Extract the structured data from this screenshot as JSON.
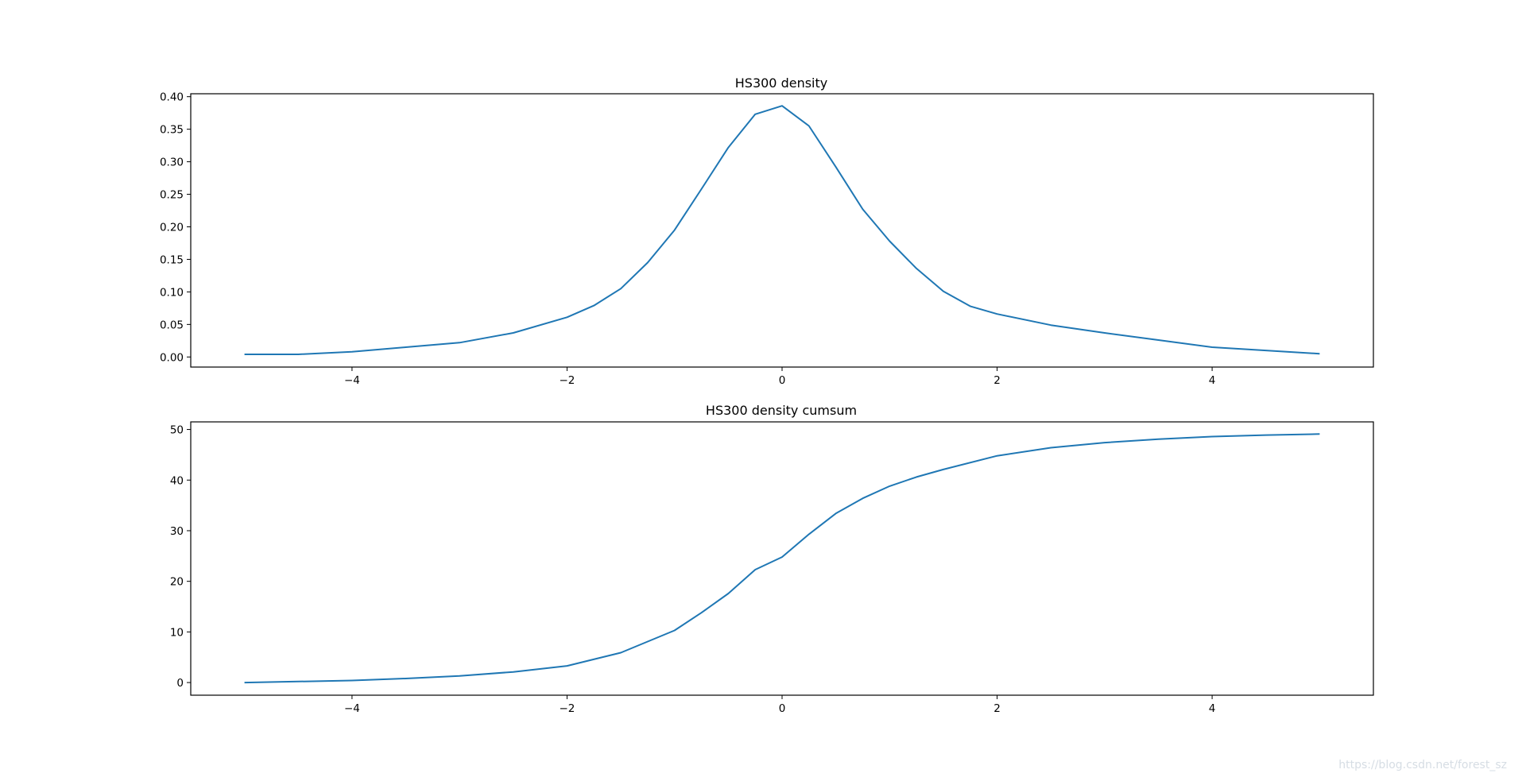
{
  "chart_data": [
    {
      "type": "line",
      "title": "HS300 density",
      "xlabel": "",
      "ylabel": "",
      "xlim": [
        -5.5,
        5.5
      ],
      "ylim": [
        -0.0155,
        0.4045
      ],
      "grid": false,
      "xticks": [
        -4,
        -2,
        0,
        2,
        4
      ],
      "xtick_labels": [
        "−4",
        "−2",
        "0",
        "2",
        "4"
      ],
      "yticks": [
        0.0,
        0.05,
        0.1,
        0.15,
        0.2,
        0.25,
        0.3,
        0.35,
        0.4
      ],
      "ytick_labels": [
        "0.00",
        "0.05",
        "0.10",
        "0.15",
        "0.20",
        "0.25",
        "0.30",
        "0.35",
        "0.40"
      ],
      "series": [
        {
          "color": "#1f77b4",
          "x": [
            -5.0,
            -4.5,
            -4.0,
            -3.5,
            -3.0,
            -2.5,
            -2.0,
            -1.75,
            -1.5,
            -1.25,
            -1.0,
            -0.75,
            -0.5,
            -0.25,
            0.0,
            0.25,
            0.5,
            0.75,
            1.0,
            1.25,
            1.5,
            1.75,
            2.0,
            2.5,
            3.0,
            3.5,
            4.0,
            4.5,
            5.0
          ],
          "y": [
            0.004,
            0.004,
            0.008,
            0.015,
            0.022,
            0.037,
            0.061,
            0.079,
            0.105,
            0.145,
            0.195,
            0.258,
            0.322,
            0.373,
            0.386,
            0.355,
            0.292,
            0.227,
            0.178,
            0.136,
            0.101,
            0.078,
            0.066,
            0.049,
            0.037,
            0.026,
            0.015,
            0.01,
            0.005
          ]
        }
      ]
    },
    {
      "type": "line",
      "title": "HS300 density cumsum",
      "xlabel": "",
      "ylabel": "",
      "xlim": [
        -5.5,
        5.5
      ],
      "ylim": [
        -2.5,
        51.5
      ],
      "grid": false,
      "xticks": [
        -4,
        -2,
        0,
        2,
        4
      ],
      "xtick_labels": [
        "−4",
        "−2",
        "0",
        "2",
        "4"
      ],
      "yticks": [
        0,
        10,
        20,
        30,
        40,
        50
      ],
      "ytick_labels": [
        "0",
        "10",
        "20",
        "30",
        "40",
        "50"
      ],
      "series": [
        {
          "color": "#1f77b4",
          "x": [
            -5.0,
            -4.5,
            -4.0,
            -3.5,
            -3.0,
            -2.5,
            -2.0,
            -1.5,
            -1.0,
            -0.75,
            -0.5,
            -0.25,
            0.0,
            0.25,
            0.5,
            0.75,
            1.0,
            1.25,
            1.5,
            2.0,
            2.5,
            3.0,
            3.5,
            4.0,
            4.5,
            5.0
          ],
          "y": [
            0.0,
            0.2,
            0.4,
            0.8,
            1.3,
            2.1,
            3.3,
            5.9,
            10.3,
            13.8,
            17.6,
            22.3,
            24.8,
            29.3,
            33.4,
            36.4,
            38.8,
            40.6,
            42.1,
            44.8,
            46.4,
            47.4,
            48.1,
            48.6,
            48.9,
            49.1
          ]
        }
      ]
    }
  ],
  "watermark": "https://blog.csdn.net/forest_sz"
}
